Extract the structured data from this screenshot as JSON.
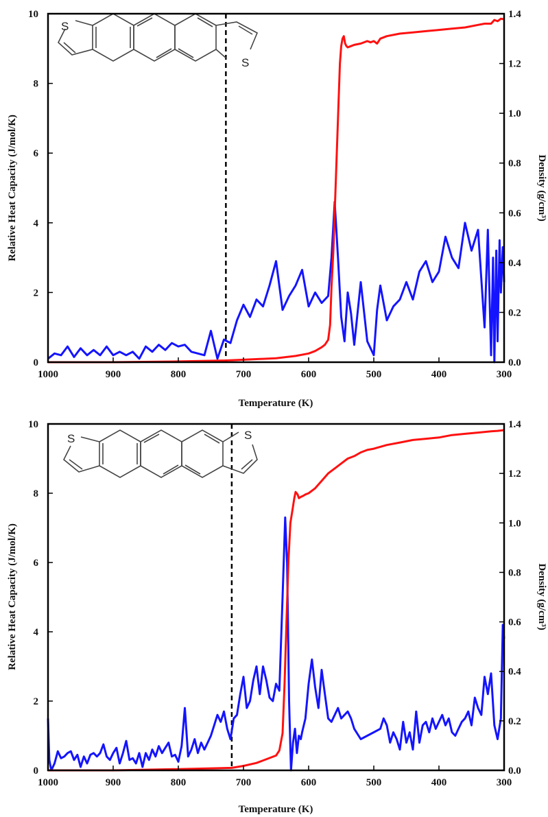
{
  "chart_data": [
    {
      "type": "line",
      "panel": "top",
      "xlabel": "Temperature (K)",
      "ylabel": "Relative Heat Capacity (J/mol/K)",
      "y2label": "Density (g/cm³)",
      "xlim": [
        1000,
        300
      ],
      "ylim": [
        0,
        10
      ],
      "y2lim": [
        0,
        1.4
      ],
      "xticks": [
        "1000",
        "900",
        "800",
        "700",
        "600",
        "500",
        "400",
        "300"
      ],
      "yticks": [
        "0",
        "2",
        "4",
        "6",
        "8",
        "10"
      ],
      "y2ticks": [
        "0.0",
        "0.2",
        "0.4",
        "0.6",
        "0.8",
        "1.0",
        "1.2",
        "1.4"
      ],
      "vline_x": 727,
      "molecule": {
        "s_labels": [
          "S",
          "S"
        ]
      },
      "colors": {
        "heat_capacity": "#1414ff",
        "density": "#ff1010"
      },
      "series": [
        {
          "axis": "left",
          "x": [
            1000,
            990,
            980,
            970,
            960,
            950,
            940,
            930,
            920,
            910,
            900,
            890,
            880,
            870,
            860,
            850,
            840,
            830,
            820,
            810,
            800,
            790,
            780,
            770,
            760,
            750,
            740,
            730,
            720,
            710,
            700,
            690,
            680,
            670,
            660,
            650,
            640,
            630,
            620,
            610,
            600,
            590,
            580,
            570,
            565,
            560,
            555,
            550,
            545,
            540,
            535,
            530,
            520,
            510,
            500,
            495,
            490,
            480,
            470,
            460,
            450,
            440,
            430,
            420,
            410,
            400,
            390,
            380,
            370,
            360,
            350,
            340,
            330,
            325,
            320,
            317,
            315,
            312,
            310,
            307,
            305,
            302,
            300
          ],
          "values": [
            0.1,
            0.25,
            0.2,
            0.45,
            0.15,
            0.4,
            0.2,
            0.35,
            0.2,
            0.45,
            0.2,
            0.3,
            0.2,
            0.3,
            0.1,
            0.45,
            0.3,
            0.5,
            0.35,
            0.55,
            0.45,
            0.5,
            0.3,
            0.25,
            0.2,
            0.9,
            0.1,
            0.65,
            0.55,
            1.2,
            1.65,
            1.3,
            1.8,
            1.6,
            2.2,
            2.9,
            1.5,
            1.9,
            2.2,
            2.65,
            1.6,
            2.0,
            1.7,
            1.9,
            3.0,
            4.6,
            3.0,
            1.3,
            0.6,
            2.0,
            1.4,
            0.5,
            2.3,
            0.6,
            0.2,
            1.5,
            2.2,
            1.2,
            1.6,
            1.8,
            2.3,
            1.8,
            2.6,
            2.9,
            2.3,
            2.6,
            3.6,
            3.0,
            2.7,
            4.0,
            3.2,
            3.8,
            1.0,
            3.8,
            0.2,
            3.0,
            0.0,
            3.2,
            0.6,
            3.5,
            2.0,
            3.3,
            2.3
          ]
        },
        {
          "axis": "right",
          "x": [
            1000,
            900,
            800,
            727,
            700,
            650,
            620,
            600,
            590,
            580,
            575,
            570,
            567,
            565,
            562,
            560,
            558,
            556,
            554,
            552,
            550,
            548,
            546,
            544,
            542,
            540,
            535,
            530,
            520,
            510,
            505,
            500,
            495,
            490,
            480,
            460,
            440,
            420,
            400,
            380,
            360,
            340,
            330,
            320,
            315,
            310,
            305,
            300
          ],
          "values": [
            0.0,
            0.0,
            0.003,
            0.007,
            0.01,
            0.016,
            0.025,
            0.035,
            0.045,
            0.06,
            0.07,
            0.09,
            0.15,
            0.3,
            0.45,
            0.6,
            0.75,
            0.9,
            1.05,
            1.2,
            1.27,
            1.3,
            1.31,
            1.28,
            1.27,
            1.265,
            1.27,
            1.275,
            1.28,
            1.29,
            1.285,
            1.29,
            1.28,
            1.3,
            1.31,
            1.32,
            1.325,
            1.33,
            1.335,
            1.34,
            1.345,
            1.355,
            1.36,
            1.36,
            1.375,
            1.37,
            1.38,
            1.378
          ]
        }
      ]
    },
    {
      "type": "line",
      "panel": "bottom",
      "xlabel": "Temperature (K)",
      "ylabel": "Relative Heat Capacity (J/mol/K)",
      "y2label": "Density (g/cm³)",
      "xlim": [
        1000,
        300
      ],
      "ylim": [
        0,
        10
      ],
      "y2lim": [
        0,
        1.4
      ],
      "xticks": [
        "1000",
        "900",
        "800",
        "700",
        "600",
        "500",
        "400",
        "300"
      ],
      "yticks": [
        "0",
        "2",
        "4",
        "6",
        "8",
        "10"
      ],
      "y2ticks": [
        "0.0",
        "0.2",
        "0.4",
        "0.6",
        "0.8",
        "1.0",
        "1.2",
        "1.4"
      ],
      "vline_x": 718,
      "molecule": {
        "s_labels": [
          "S",
          "S"
        ]
      },
      "colors": {
        "heat_capacity": "#1414ff",
        "density": "#ff1010"
      },
      "series": [
        {
          "axis": "left",
          "x": [
            1000,
            998,
            995,
            990,
            985,
            980,
            975,
            970,
            965,
            960,
            955,
            950,
            945,
            940,
            935,
            930,
            925,
            920,
            915,
            910,
            905,
            900,
            895,
            890,
            885,
            880,
            875,
            870,
            865,
            860,
            855,
            850,
            845,
            840,
            835,
            830,
            825,
            820,
            815,
            810,
            805,
            800,
            795,
            790,
            785,
            780,
            775,
            770,
            765,
            760,
            755,
            750,
            745,
            740,
            735,
            730,
            725,
            720,
            715,
            710,
            705,
            700,
            695,
            690,
            685,
            680,
            675,
            670,
            665,
            660,
            655,
            650,
            645,
            640,
            636,
            633,
            630,
            627,
            624,
            621,
            618,
            615,
            612,
            610,
            605,
            600,
            595,
            590,
            585,
            580,
            575,
            570,
            565,
            560,
            555,
            550,
            545,
            540,
            535,
            530,
            520,
            510,
            500,
            490,
            485,
            480,
            475,
            470,
            465,
            460,
            455,
            450,
            445,
            440,
            435,
            430,
            425,
            420,
            415,
            410,
            405,
            400,
            395,
            390,
            385,
            380,
            375,
            370,
            365,
            360,
            355,
            350,
            345,
            340,
            335,
            330,
            325,
            320,
            315,
            310,
            305,
            302,
            300
          ],
          "values": [
            1.5,
            0.3,
            0.0,
            0.2,
            0.55,
            0.35,
            0.4,
            0.5,
            0.55,
            0.3,
            0.45,
            0.1,
            0.4,
            0.2,
            0.45,
            0.5,
            0.4,
            0.5,
            0.75,
            0.4,
            0.3,
            0.5,
            0.65,
            0.2,
            0.5,
            0.85,
            0.3,
            0.35,
            0.2,
            0.5,
            0.1,
            0.5,
            0.3,
            0.6,
            0.4,
            0.7,
            0.5,
            0.65,
            0.8,
            0.4,
            0.45,
            0.25,
            0.7,
            1.8,
            0.4,
            0.6,
            0.9,
            0.5,
            0.8,
            0.6,
            0.8,
            1.0,
            1.3,
            1.6,
            1.4,
            1.7,
            1.2,
            0.9,
            1.5,
            1.6,
            2.2,
            2.7,
            1.8,
            2.0,
            2.6,
            3.0,
            2.2,
            3.0,
            2.6,
            2.1,
            2.0,
            2.5,
            2.3,
            5.0,
            7.3,
            6.0,
            2.0,
            0.0,
            0.8,
            1.2,
            0.5,
            1.0,
            0.9,
            1.1,
            1.5,
            2.5,
            3.2,
            2.4,
            1.8,
            2.9,
            2.2,
            1.5,
            1.4,
            1.6,
            1.8,
            1.5,
            1.6,
            1.7,
            1.5,
            1.2,
            0.9,
            1.0,
            1.1,
            1.2,
            1.5,
            1.3,
            0.8,
            1.1,
            0.9,
            0.6,
            1.4,
            0.8,
            1.1,
            0.6,
            1.7,
            0.8,
            1.3,
            1.4,
            1.1,
            1.5,
            1.2,
            1.4,
            1.6,
            1.3,
            1.5,
            1.1,
            1.0,
            1.2,
            1.4,
            1.5,
            1.7,
            1.3,
            2.1,
            1.8,
            1.6,
            2.7,
            2.2,
            2.8,
            1.3,
            0.9,
            1.5,
            4.2,
            3.8
          ]
        },
        {
          "axis": "right",
          "x": [
            1000,
            900,
            800,
            718,
            700,
            680,
            660,
            650,
            645,
            640,
            637,
            634,
            631,
            628,
            625,
            622,
            620,
            617,
            615,
            612,
            608,
            605,
            600,
            590,
            580,
            570,
            560,
            550,
            540,
            530,
            520,
            510,
            500,
            480,
            460,
            440,
            420,
            400,
            380,
            360,
            340,
            320,
            310,
            300
          ],
          "values": [
            0.0,
            0.0,
            0.005,
            0.01,
            0.018,
            0.03,
            0.05,
            0.06,
            0.08,
            0.15,
            0.35,
            0.6,
            0.85,
            1.0,
            1.05,
            1.1,
            1.125,
            1.115,
            1.1,
            1.105,
            1.11,
            1.115,
            1.12,
            1.14,
            1.17,
            1.2,
            1.22,
            1.24,
            1.26,
            1.27,
            1.285,
            1.295,
            1.3,
            1.315,
            1.325,
            1.335,
            1.34,
            1.345,
            1.355,
            1.36,
            1.365,
            1.37,
            1.372,
            1.375
          ]
        }
      ]
    }
  ]
}
